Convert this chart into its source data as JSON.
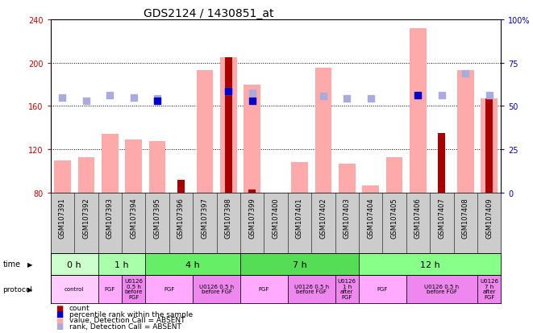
{
  "title": "GDS2124 / 1430851_at",
  "samples": [
    "GSM107391",
    "GSM107392",
    "GSM107393",
    "GSM107394",
    "GSM107395",
    "GSM107396",
    "GSM107397",
    "GSM107398",
    "GSM107399",
    "GSM107400",
    "GSM107401",
    "GSM107402",
    "GSM107403",
    "GSM107404",
    "GSM107405",
    "GSM107406",
    "GSM107407",
    "GSM107408",
    "GSM107409"
  ],
  "value_absent": [
    110,
    113,
    134,
    129,
    128,
    null,
    193,
    205,
    180,
    null,
    108,
    195,
    107,
    87,
    113,
    232,
    null,
    193,
    167
  ],
  "count": [
    null,
    null,
    null,
    null,
    null,
    92,
    null,
    205,
    83,
    null,
    null,
    null,
    null,
    null,
    null,
    null,
    135,
    null,
    167
  ],
  "rank_absent": [
    168,
    165,
    170,
    168,
    167,
    null,
    null,
    174,
    172,
    null,
    null,
    169,
    167,
    167,
    null,
    null,
    170,
    190,
    170
  ],
  "percentile_rank": [
    null,
    null,
    null,
    null,
    165,
    null,
    null,
    174,
    165,
    null,
    null,
    null,
    null,
    null,
    null,
    170,
    null,
    null,
    null
  ],
  "time_groups": [
    {
      "label": "0 h",
      "start": 0,
      "end": 2,
      "color": "#ccffcc"
    },
    {
      "label": "1 h",
      "start": 2,
      "end": 4,
      "color": "#aaffaa"
    },
    {
      "label": "4 h",
      "start": 4,
      "end": 8,
      "color": "#66ee66"
    },
    {
      "label": "7 h",
      "start": 8,
      "end": 13,
      "color": "#55dd55"
    },
    {
      "label": "12 h",
      "start": 13,
      "end": 19,
      "color": "#88ff88"
    }
  ],
  "protocol_groups": [
    {
      "label": "control",
      "start": 0,
      "end": 2,
      "color": "#ffccff"
    },
    {
      "label": "FGF",
      "start": 2,
      "end": 3,
      "color": "#ffaaff"
    },
    {
      "label": "U0126\n0.5 h\nbefore\nFGF",
      "start": 3,
      "end": 4,
      "color": "#ee88ee"
    },
    {
      "label": "FGF",
      "start": 4,
      "end": 6,
      "color": "#ffaaff"
    },
    {
      "label": "U0126 0.5 h\nbefore FGF",
      "start": 6,
      "end": 8,
      "color": "#ee88ee"
    },
    {
      "label": "FGF",
      "start": 8,
      "end": 10,
      "color": "#ffaaff"
    },
    {
      "label": "U0126 0.5 h\nbefore FGF",
      "start": 10,
      "end": 12,
      "color": "#ee88ee"
    },
    {
      "label": "U0126\n1 h\nafter\nFGF",
      "start": 12,
      "end": 13,
      "color": "#ee88ee"
    },
    {
      "label": "FGF",
      "start": 13,
      "end": 15,
      "color": "#ffaaff"
    },
    {
      "label": "U0126 0.5 h\nbefore FGF",
      "start": 15,
      "end": 18,
      "color": "#ee88ee"
    },
    {
      "label": "U0126\n7 h\nafter\nFGF",
      "start": 18,
      "end": 19,
      "color": "#ee88ee"
    }
  ],
  "ylim_left": [
    80,
    240
  ],
  "ylim_right": [
    0,
    100
  ],
  "yticks_left": [
    80,
    120,
    160,
    200,
    240
  ],
  "yticks_right": [
    0,
    25,
    50,
    75,
    100
  ],
  "bar_color_absent": "#ffaaaa",
  "bar_color_count": "#aa0000",
  "scatter_color_rank_absent": "#aaaadd",
  "scatter_color_percentile": "#0000cc",
  "title_fontsize": 10,
  "axis_label_color_left": "#cc0000",
  "axis_label_color_right": "#0000bb",
  "gridline_y": [
    120,
    160,
    200
  ],
  "legend_items": [
    {
      "color": "#aa0000",
      "label": "count"
    },
    {
      "color": "#0000cc",
      "label": "percentile rank within the sample"
    },
    {
      "color": "#ffaaaa",
      "label": "value, Detection Call = ABSENT"
    },
    {
      "color": "#aaaadd",
      "label": "rank, Detection Call = ABSENT"
    }
  ]
}
